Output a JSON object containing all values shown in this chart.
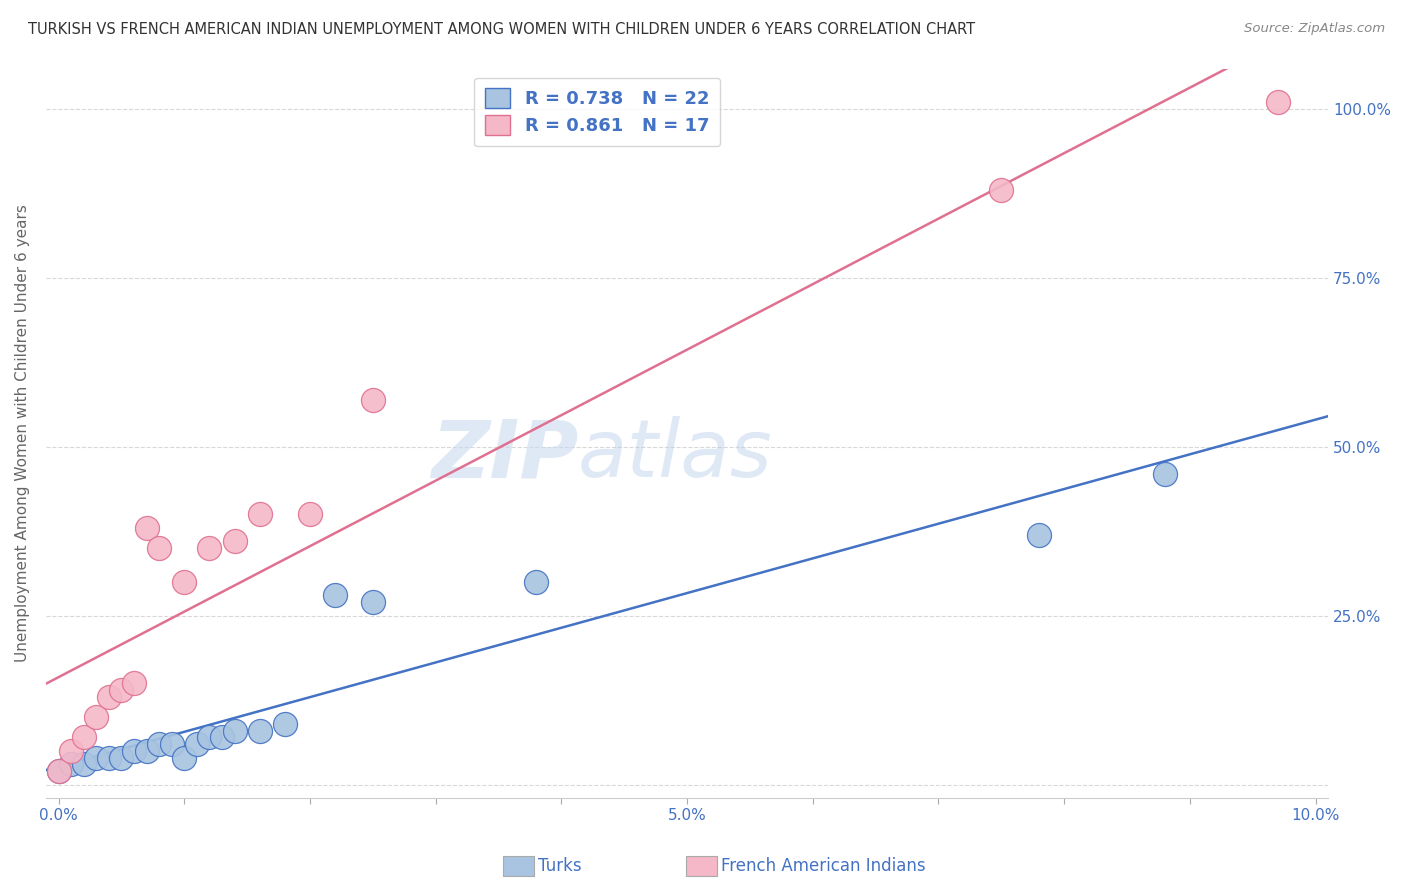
{
  "title": "TURKISH VS FRENCH AMERICAN INDIAN UNEMPLOYMENT AMONG WOMEN WITH CHILDREN UNDER 6 YEARS CORRELATION CHART",
  "source": "Source: ZipAtlas.com",
  "ylabel": "Unemployment Among Women with Children Under 6 years",
  "xlabel_turks": "Turks",
  "xlabel_french": "French American Indians",
  "xlim": [
    -0.001,
    0.101
  ],
  "ylim": [
    -0.02,
    1.06
  ],
  "R_turks": 0.738,
  "N_turks": 22,
  "R_french": 0.861,
  "N_french": 17,
  "color_turks": "#a8c4e0",
  "color_french": "#f4b8c8",
  "line_color_turks": "#4472c4",
  "line_color_french": "#e07090",
  "turks_x": [
    0.0,
    0.001,
    0.002,
    0.003,
    0.004,
    0.005,
    0.006,
    0.007,
    0.008,
    0.009,
    0.01,
    0.011,
    0.012,
    0.013,
    0.014,
    0.016,
    0.018,
    0.022,
    0.025,
    0.038,
    0.078,
    0.088
  ],
  "turks_y": [
    0.02,
    0.03,
    0.03,
    0.04,
    0.04,
    0.04,
    0.05,
    0.05,
    0.06,
    0.06,
    0.04,
    0.06,
    0.07,
    0.07,
    0.08,
    0.08,
    0.09,
    0.28,
    0.27,
    0.3,
    0.37,
    0.46
  ],
  "french_x": [
    0.0,
    0.001,
    0.002,
    0.003,
    0.004,
    0.005,
    0.006,
    0.007,
    0.008,
    0.01,
    0.012,
    0.014,
    0.016,
    0.02,
    0.025,
    0.075,
    0.097
  ],
  "french_y": [
    0.02,
    0.05,
    0.07,
    0.1,
    0.13,
    0.14,
    0.15,
    0.38,
    0.35,
    0.3,
    0.35,
    0.36,
    0.4,
    0.4,
    0.57,
    0.88,
    1.01
  ],
  "watermark_zip": "ZIP",
  "watermark_atlas": "atlas",
  "background_color": "#ffffff",
  "grid_color": "#d8d8d8",
  "title_color": "#333333",
  "source_color": "#888888",
  "axis_label_color": "#4472c4",
  "ylabel_color": "#666666"
}
